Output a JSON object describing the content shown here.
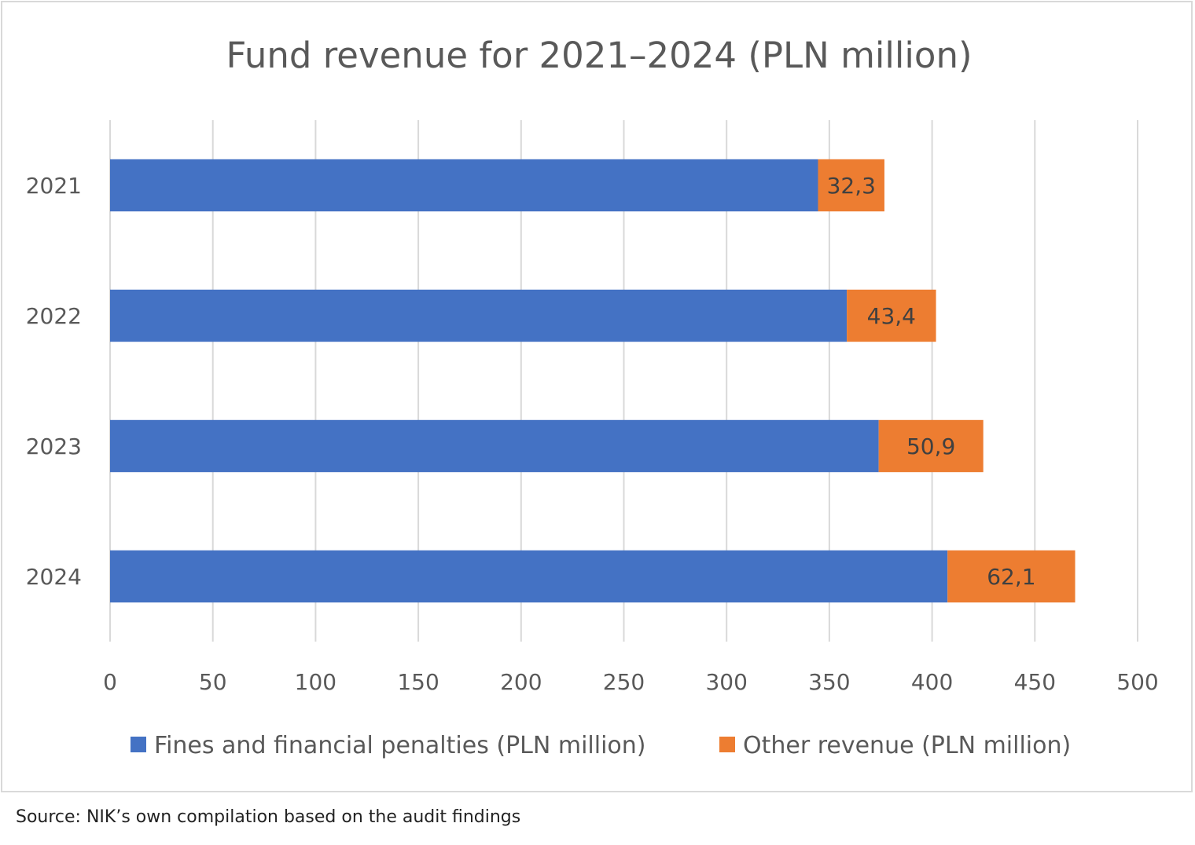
{
  "chart_data": {
    "type": "bar",
    "orientation": "horizontal",
    "stacked": true,
    "title": "Fund revenue for 2021–2024 (PLN million)",
    "xlabel": "",
    "ylabel": "",
    "categories": [
      "2021",
      "2022",
      "2023",
      "2024"
    ],
    "series": [
      {
        "name": "Fines and financial penalties (PLN million)",
        "color": "#4472C4",
        "values": [
          344.5,
          358.5,
          374.0,
          407.5
        ],
        "data_labels": null
      },
      {
        "name": "Other revenue (PLN million)",
        "color": "#ED7D31",
        "values": [
          32.3,
          43.4,
          50.9,
          62.1
        ],
        "data_labels": [
          "32,3",
          "43,4",
          "50,9",
          "62,1"
        ]
      }
    ],
    "xlim": [
      0,
      500
    ],
    "xticks": [
      0,
      50,
      100,
      150,
      200,
      250,
      300,
      350,
      400,
      450,
      500
    ],
    "grid": "vertical",
    "legend_position": "bottom",
    "colors": {
      "grid": "#d9d9d9",
      "text": "#595959",
      "label_text": "#404040"
    }
  },
  "source_note": "Source: NIK’s own compilation based on the audit findings"
}
